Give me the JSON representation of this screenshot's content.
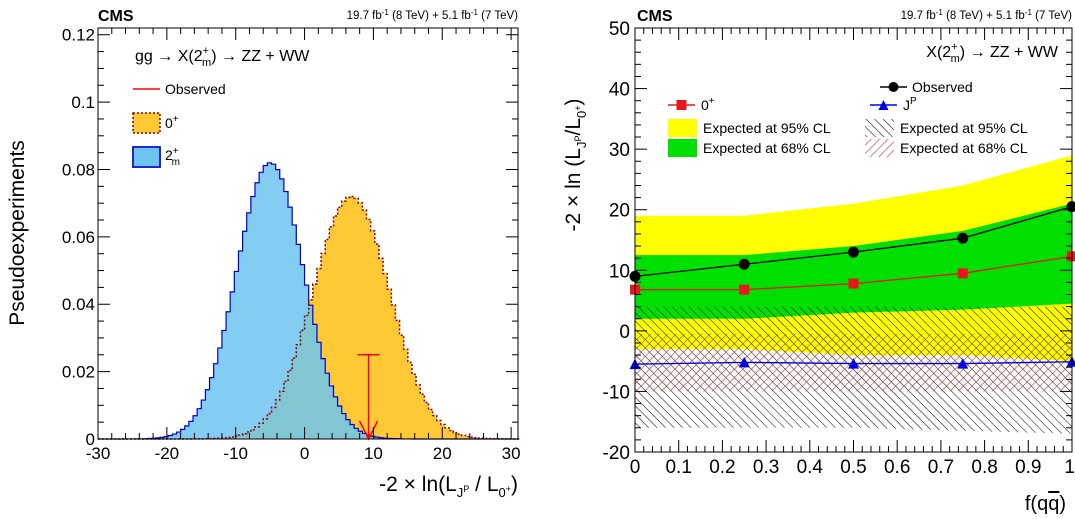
{
  "chart_data": [
    {
      "type": "histogram",
      "experiment": "CMS",
      "lumi_label": "19.7 fb-1 (8 TeV) + 5.1 fb-1 (7 TeV)",
      "process_label": "gg → X(2+m) → ZZ + WW",
      "xlabel": "-2 × ln(L_JP / L_0+)",
      "ylabel": "Pseudoexperiments",
      "xlim": [
        -30,
        31
      ],
      "ylim": [
        0,
        0.122
      ],
      "xticks": [
        "-30",
        "-20",
        "-10",
        "0",
        "10",
        "20",
        "30"
      ],
      "yticks": [
        "0",
        "0.02",
        "0.04",
        "0.06",
        "0.08",
        "0.1",
        "0.12"
      ],
      "legend": [
        "Observed",
        "0+",
        "2+m"
      ],
      "series": [
        {
          "name": "0+",
          "kind": "gaussian",
          "mean": 6.8,
          "sigma": 5.6,
          "peak": 0.072,
          "color": "#ffc835"
        },
        {
          "name": "2+m",
          "kind": "gaussian",
          "mean": -5.0,
          "sigma": 4.9,
          "peak": 0.082,
          "color": "#6cc4ef"
        }
      ],
      "observed": {
        "x": 9.3,
        "arrow_top": 0.025,
        "color": "#ff0000"
      }
    },
    {
      "type": "line",
      "experiment": "CMS",
      "lumi_label": "19.7 fb-1 (8 TeV) + 5.1 fb-1 (7 TeV)",
      "process_label": "X(2+m) → ZZ + WW",
      "xlabel": "f(qq̄)",
      "ylabel": "-2 × ln (L_JP/L_0+)",
      "xlim": [
        0,
        1
      ],
      "ylim": [
        -20,
        50
      ],
      "xticks": [
        "0",
        "0.1",
        "0.2",
        "0.3",
        "0.4",
        "0.5",
        "0.6",
        "0.7",
        "0.8",
        "0.9",
        "1"
      ],
      "yticks": [
        "-20",
        "-10",
        "0",
        "10",
        "20",
        "30",
        "40",
        "50"
      ],
      "x": [
        0,
        0.25,
        0.5,
        0.75,
        1.0
      ],
      "series": [
        {
          "name": "Observed",
          "values": [
            9.0,
            11.0,
            13.0,
            15.3,
            20.5
          ],
          "color": "#000000"
        },
        {
          "name": "0+",
          "values": [
            6.8,
            6.8,
            7.8,
            9.5,
            12.3
          ],
          "color": "#e8171d"
        },
        {
          "name": "JP",
          "values": [
            -5.5,
            -5.2,
            -5.4,
            -5.4,
            -5.1
          ],
          "color": "#0000e6"
        }
      ],
      "bands": [
        {
          "name": "Expected at 95% CL (0+)",
          "low": [
            -3.0,
            -3.0,
            -4.0,
            -4.0,
            -5.0
          ],
          "high": [
            19.0,
            19.0,
            21.0,
            24.0,
            29.0
          ],
          "color": "#ffff00"
        },
        {
          "name": "Expected at 68% CL (0+)",
          "low": [
            2.0,
            2.0,
            3.0,
            3.5,
            4.5
          ],
          "high": [
            12.5,
            12.5,
            14.0,
            16.5,
            21.0
          ],
          "color": "#00e000"
        },
        {
          "name": "Expected at 95% CL (JP)",
          "low": [
            -16.0,
            -16.0,
            -16.0,
            -16.5,
            -17.0
          ],
          "high": [
            4.0,
            4.0,
            4.0,
            4.0,
            4.0
          ],
          "color": "#000000"
        },
        {
          "name": "Expected at 68% CL (JP)",
          "low": [
            -10.0,
            -10.0,
            -10.0,
            -10.0,
            -10.0
          ],
          "high": [
            -0.5,
            -0.5,
            -0.5,
            -0.5,
            -0.5
          ],
          "color": "#c0392b"
        }
      ],
      "legend": [
        "Observed",
        "0+",
        "JP",
        "Expected at 95% CL",
        "Expected at 68% CL",
        "Expected at 95% CL",
        "Expected at 68% CL"
      ]
    }
  ]
}
